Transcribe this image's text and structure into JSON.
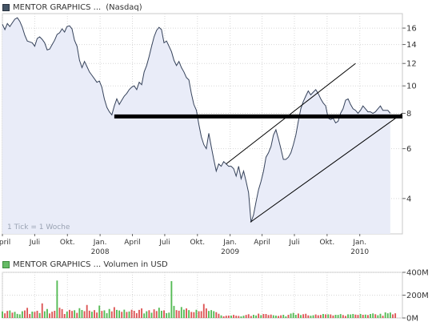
{
  "price_header": {
    "company": "MENTOR GRAPHICS ...",
    "exchange": "(Nasdaq)"
  },
  "volume_header": {
    "label": "MENTOR GRAPHICS ... Volumen in USD"
  },
  "tick_note": "1 Tick = 1 Woche",
  "colors": {
    "price_fill": "#e9ecf8",
    "price_line": "#35425a",
    "trend_bold": "#000000",
    "vol_up": "#55bb55",
    "vol_down": "#dd5555",
    "grid": "#d8d8d8"
  },
  "chart_data": [
    {
      "type": "line",
      "title": "MENTOR GRAPHICS ... (Nasdaq)",
      "y_scale": "log",
      "ylim": [
        3.0,
        18.0
      ],
      "y_ticks": [
        4,
        6,
        8,
        10,
        12,
        14,
        16
      ],
      "x_range": [
        "2007-04-01",
        "2010-05-01"
      ],
      "x_ticks": [
        {
          "date": "2007-04-01",
          "label": "April",
          "year": ""
        },
        {
          "date": "2007-07-01",
          "label": "Juli",
          "year": ""
        },
        {
          "date": "2007-10-01",
          "label": "Okt.",
          "year": ""
        },
        {
          "date": "2008-01-01",
          "label": "Jan.",
          "year": "2008"
        },
        {
          "date": "2008-04-01",
          "label": "April",
          "year": ""
        },
        {
          "date": "2008-07-01",
          "label": "Juli",
          "year": ""
        },
        {
          "date": "2008-10-01",
          "label": "Okt.",
          "year": ""
        },
        {
          "date": "2009-01-01",
          "label": "Jan.",
          "year": "2009"
        },
        {
          "date": "2009-04-01",
          "label": "April",
          "year": ""
        },
        {
          "date": "2009-07-01",
          "label": "Juli",
          "year": ""
        },
        {
          "date": "2009-10-01",
          "label": "Okt.",
          "year": ""
        },
        {
          "date": "2010-01-01",
          "label": "Jan.",
          "year": "2010"
        }
      ],
      "series": [
        {
          "name": "MENTOR GRAPHICS ...",
          "points": [
            [
              "2007-04-01",
              16.5
            ],
            [
              "2007-04-08",
              15.8
            ],
            [
              "2007-04-15",
              16.6
            ],
            [
              "2007-04-22",
              16.2
            ],
            [
              "2007-04-29",
              16.7
            ],
            [
              "2007-05-06",
              17.2
            ],
            [
              "2007-05-13",
              17.4
            ],
            [
              "2007-05-20",
              16.9
            ],
            [
              "2007-05-27",
              16.1
            ],
            [
              "2007-06-03",
              15.1
            ],
            [
              "2007-06-10",
              14.4
            ],
            [
              "2007-06-17",
              14.3
            ],
            [
              "2007-06-24",
              14.2
            ],
            [
              "2007-07-01",
              13.8
            ],
            [
              "2007-07-08",
              14.7
            ],
            [
              "2007-07-15",
              14.9
            ],
            [
              "2007-07-22",
              14.6
            ],
            [
              "2007-07-29",
              14.2
            ],
            [
              "2007-08-05",
              13.4
            ],
            [
              "2007-08-12",
              13.5
            ],
            [
              "2007-08-19",
              14.0
            ],
            [
              "2007-08-26",
              14.5
            ],
            [
              "2007-09-02",
              15.2
            ],
            [
              "2007-09-09",
              15.4
            ],
            [
              "2007-09-16",
              15.9
            ],
            [
              "2007-09-23",
              15.5
            ],
            [
              "2007-09-30",
              16.2
            ],
            [
              "2007-10-07",
              16.3
            ],
            [
              "2007-10-14",
              15.9
            ],
            [
              "2007-10-21",
              14.5
            ],
            [
              "2007-10-28",
              13.8
            ],
            [
              "2007-11-04",
              12.3
            ],
            [
              "2007-11-11",
              11.6
            ],
            [
              "2007-11-18",
              12.2
            ],
            [
              "2007-11-25",
              11.7
            ],
            [
              "2007-12-02",
              11.2
            ],
            [
              "2007-12-09",
              10.9
            ],
            [
              "2007-12-16",
              10.6
            ],
            [
              "2007-12-23",
              10.3
            ],
            [
              "2007-12-30",
              10.4
            ],
            [
              "2008-01-06",
              9.9
            ],
            [
              "2008-01-13",
              9.0
            ],
            [
              "2008-01-20",
              8.4
            ],
            [
              "2008-01-27",
              8.1
            ],
            [
              "2008-02-03",
              7.9
            ],
            [
              "2008-02-10",
              8.5
            ],
            [
              "2008-02-17",
              9.0
            ],
            [
              "2008-02-24",
              8.6
            ],
            [
              "2008-03-02",
              8.9
            ],
            [
              "2008-03-09",
              9.2
            ],
            [
              "2008-03-16",
              9.4
            ],
            [
              "2008-03-23",
              9.7
            ],
            [
              "2008-03-30",
              9.9
            ],
            [
              "2008-04-06",
              10.0
            ],
            [
              "2008-04-13",
              9.7
            ],
            [
              "2008-04-20",
              10.3
            ],
            [
              "2008-04-27",
              10.1
            ],
            [
              "2008-05-04",
              11.2
            ],
            [
              "2008-05-11",
              11.8
            ],
            [
              "2008-05-18",
              12.7
            ],
            [
              "2008-05-25",
              13.8
            ],
            [
              "2008-06-01",
              14.9
            ],
            [
              "2008-06-08",
              15.7
            ],
            [
              "2008-06-15",
              16.1
            ],
            [
              "2008-06-22",
              15.8
            ],
            [
              "2008-06-29",
              14.2
            ],
            [
              "2008-07-06",
              14.4
            ],
            [
              "2008-07-13",
              13.8
            ],
            [
              "2008-07-20",
              13.2
            ],
            [
              "2008-07-27",
              12.3
            ],
            [
              "2008-08-03",
              11.8
            ],
            [
              "2008-08-10",
              12.2
            ],
            [
              "2008-08-17",
              11.6
            ],
            [
              "2008-08-24",
              11.2
            ],
            [
              "2008-08-31",
              10.7
            ],
            [
              "2008-09-07",
              10.5
            ],
            [
              "2008-09-14",
              9.4
            ],
            [
              "2008-09-21",
              8.6
            ],
            [
              "2008-09-28",
              8.2
            ],
            [
              "2008-10-05",
              7.3
            ],
            [
              "2008-10-12",
              6.6
            ],
            [
              "2008-10-19",
              6.2
            ],
            [
              "2008-10-26",
              6.0
            ],
            [
              "2008-11-02",
              6.8
            ],
            [
              "2008-11-09",
              6.1
            ],
            [
              "2008-11-16",
              5.5
            ],
            [
              "2008-11-23",
              5.0
            ],
            [
              "2008-11-30",
              5.3
            ],
            [
              "2008-12-07",
              5.2
            ],
            [
              "2008-12-14",
              5.4
            ],
            [
              "2008-12-21",
              5.3
            ],
            [
              "2008-12-28",
              5.2
            ],
            [
              "2009-01-04",
              5.2
            ],
            [
              "2009-01-11",
              5.1
            ],
            [
              "2009-01-18",
              4.8
            ],
            [
              "2009-01-25",
              5.2
            ],
            [
              "2009-02-01",
              4.7
            ],
            [
              "2009-02-08",
              5.0
            ],
            [
              "2009-02-15",
              4.6
            ],
            [
              "2009-02-22",
              4.2
            ],
            [
              "2009-03-01",
              3.3
            ],
            [
              "2009-03-08",
              3.5
            ],
            [
              "2009-03-15",
              3.9
            ],
            [
              "2009-03-22",
              4.3
            ],
            [
              "2009-03-29",
              4.6
            ],
            [
              "2009-04-05",
              5.0
            ],
            [
              "2009-04-12",
              5.6
            ],
            [
              "2009-04-19",
              5.8
            ],
            [
              "2009-04-26",
              6.1
            ],
            [
              "2009-05-03",
              6.7
            ],
            [
              "2009-05-10",
              7.0
            ],
            [
              "2009-05-17",
              6.5
            ],
            [
              "2009-05-24",
              6.0
            ],
            [
              "2009-05-31",
              5.5
            ],
            [
              "2009-06-07",
              5.5
            ],
            [
              "2009-06-14",
              5.6
            ],
            [
              "2009-06-21",
              5.8
            ],
            [
              "2009-06-28",
              6.2
            ],
            [
              "2009-07-05",
              6.7
            ],
            [
              "2009-07-12",
              7.5
            ],
            [
              "2009-07-19",
              8.3
            ],
            [
              "2009-07-26",
              8.8
            ],
            [
              "2009-08-02",
              9.2
            ],
            [
              "2009-08-09",
              9.6
            ],
            [
              "2009-08-16",
              9.3
            ],
            [
              "2009-08-23",
              9.5
            ],
            [
              "2009-08-30",
              9.7
            ],
            [
              "2009-09-06",
              9.4
            ],
            [
              "2009-09-13",
              9.0
            ],
            [
              "2009-09-20",
              8.7
            ],
            [
              "2009-09-27",
              8.5
            ],
            [
              "2009-10-04",
              7.7
            ],
            [
              "2009-10-11",
              7.6
            ],
            [
              "2009-10-18",
              7.7
            ],
            [
              "2009-10-25",
              7.4
            ],
            [
              "2009-11-01",
              7.5
            ],
            [
              "2009-11-08",
              8.0
            ],
            [
              "2009-11-15",
              8.3
            ],
            [
              "2009-11-22",
              8.9
            ],
            [
              "2009-11-29",
              9.0
            ],
            [
              "2009-12-06",
              8.6
            ],
            [
              "2009-12-13",
              8.3
            ],
            [
              "2009-12-20",
              8.2
            ],
            [
              "2009-12-27",
              8.0
            ],
            [
              "2010-01-03",
              8.2
            ],
            [
              "2010-01-10",
              8.5
            ],
            [
              "2010-01-17",
              8.3
            ],
            [
              "2010-01-24",
              8.1
            ],
            [
              "2010-01-31",
              8.1
            ],
            [
              "2010-02-07",
              8.0
            ],
            [
              "2010-02-14",
              8.1
            ],
            [
              "2010-02-21",
              8.3
            ],
            [
              "2010-02-28",
              8.5
            ],
            [
              "2010-03-07",
              8.2
            ],
            [
              "2010-03-14",
              8.2
            ],
            [
              "2010-03-21",
              8.2
            ],
            [
              "2010-03-28",
              8.0
            ]
          ]
        }
      ],
      "annotations": [
        {
          "kind": "horizontal-line",
          "name": "support-line",
          "y": 7.8,
          "x_from": "2008-02-10",
          "x_to": "2010-05-01",
          "weight": "bold"
        },
        {
          "kind": "trend-line",
          "name": "channel-upper",
          "from": [
            "2008-12-21",
            5.3
          ],
          "to": [
            "2009-12-20",
            12.0
          ]
        },
        {
          "kind": "trend-line",
          "name": "channel-lower",
          "from": [
            "2009-02-27",
            3.3
          ],
          "to": [
            "2010-05-01",
            8.0
          ]
        }
      ]
    },
    {
      "type": "bar",
      "title": "MENTOR GRAPHICS ... Volumen in USD",
      "ylim": [
        0,
        400
      ],
      "y_unit": "M",
      "y_ticks": [
        {
          "value": 0,
          "label": "0M"
        },
        {
          "value": 200,
          "label": "200M"
        },
        {
          "value": 400,
          "label": "400M"
        }
      ],
      "x_range": [
        "2007-04-01",
        "2010-05-01"
      ],
      "start": "2007-04-01",
      "interval": "weekly",
      "values": [
        58,
        41,
        62,
        66,
        47,
        54,
        36,
        32,
        59,
        66,
        89,
        35,
        56,
        54,
        63,
        43,
        128,
        59,
        79,
        40,
        55,
        63,
        328,
        90,
        78,
        35,
        56,
        71,
        62,
        68,
        45,
        86,
        70,
        60,
        114,
        64,
        55,
        69,
        48,
        109,
        62,
        67,
        42,
        79,
        58,
        95,
        71,
        66,
        54,
        73,
        53,
        57,
        72,
        63,
        42,
        71,
        84,
        40,
        59,
        68,
        46,
        76,
        61,
        90,
        63,
        67,
        42,
        47,
        323,
        106,
        69,
        64,
        96,
        73,
        84,
        69,
        53,
        51,
        72,
        59,
        60,
        123,
        84,
        62,
        69,
        60,
        51,
        37,
        23,
        15,
        20,
        21,
        21,
        27,
        20,
        18,
        14,
        20,
        27,
        33,
        18,
        28,
        22,
        38,
        25,
        35,
        35,
        26,
        30,
        24,
        21,
        18,
        24,
        28,
        14,
        28,
        39,
        45,
        28,
        39,
        26,
        33,
        37,
        23,
        20,
        24,
        31,
        24,
        27,
        35,
        32,
        32,
        31,
        22,
        28,
        27,
        34,
        26,
        18,
        32,
        31,
        35,
        30,
        27,
        35,
        28,
        30,
        26,
        35,
        40,
        33,
        24,
        37,
        20,
        49,
        41,
        48,
        32,
        41
      ],
      "colors": [
        "g",
        "r",
        "r",
        "g",
        "r",
        "g",
        "g",
        "g",
        "g",
        "r",
        "r",
        "r",
        "g",
        "r",
        "r",
        "g",
        "r",
        "g",
        "g",
        "r",
        "r",
        "r",
        "g",
        "r",
        "r",
        "r",
        "g",
        "r",
        "r",
        "g",
        "r",
        "g",
        "g",
        "r",
        "r",
        "r",
        "g",
        "r",
        "r",
        "g",
        "r",
        "g",
        "g",
        "g",
        "r",
        "r",
        "g",
        "g",
        "r",
        "g",
        "r",
        "g",
        "r",
        "r",
        "r",
        "r",
        "r",
        "g",
        "g",
        "r",
        "g",
        "r",
        "r",
        "g",
        "g",
        "r",
        "g",
        "g",
        "g",
        "g",
        "r",
        "r",
        "g",
        "g",
        "r",
        "g",
        "r",
        "r",
        "g",
        "r",
        "r",
        "r",
        "r",
        "g",
        "g",
        "g",
        "r",
        "r",
        "g",
        "r",
        "r",
        "r",
        "g",
        "r",
        "r",
        "r",
        "g",
        "g",
        "r",
        "r",
        "r",
        "g",
        "g",
        "r",
        "g",
        "r",
        "r",
        "r",
        "r",
        "g",
        "g",
        "r",
        "r",
        "g",
        "g",
        "r",
        "g",
        "g",
        "g",
        "r",
        "g",
        "r",
        "r",
        "r",
        "g",
        "g",
        "r",
        "r",
        "r",
        "g",
        "r",
        "g",
        "r",
        "r",
        "g",
        "g",
        "g",
        "r",
        "r",
        "g",
        "g",
        "g",
        "r",
        "r",
        "g",
        "r",
        "g",
        "r",
        "g",
        "g",
        "r",
        "g",
        "g",
        "r",
        "g",
        "g",
        "g",
        "r",
        "r"
      ]
    }
  ]
}
